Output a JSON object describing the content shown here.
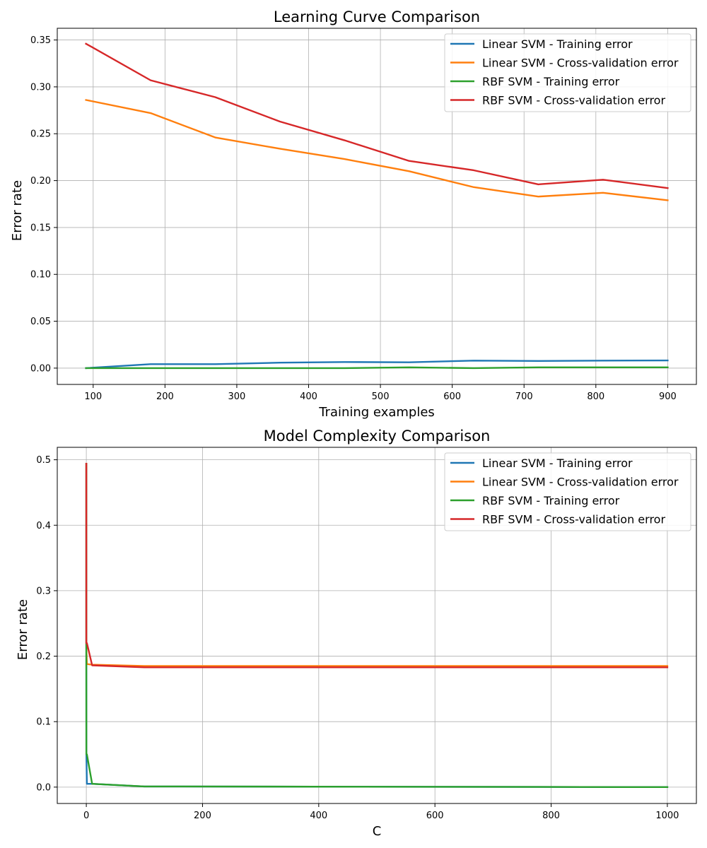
{
  "chart_data": [
    {
      "type": "line",
      "title": "Learning Curve Comparison",
      "xlabel": "Training examples",
      "ylabel": "Error rate",
      "xlim": [
        50,
        940
      ],
      "ylim": [
        -0.0174,
        0.3625
      ],
      "xticks": [
        100,
        200,
        300,
        400,
        500,
        600,
        700,
        800,
        900
      ],
      "xtick_labels": [
        "100",
        "200",
        "300",
        "400",
        "500",
        "600",
        "700",
        "800",
        "900"
      ],
      "yticks": [
        0.0,
        0.05,
        0.1,
        0.15,
        0.2,
        0.25,
        0.3,
        0.35
      ],
      "ytick_labels": [
        "0.00",
        "0.05",
        "0.10",
        "0.15",
        "0.20",
        "0.25",
        "0.30",
        "0.35"
      ],
      "grid": true,
      "legend": "top-right",
      "x": [
        90,
        180,
        270,
        360,
        450,
        540,
        630,
        720,
        810,
        900
      ],
      "series": [
        {
          "name": "Linear SVM - Training error",
          "color": "#1f77b4",
          "values": [
            0.0,
            0.0042,
            0.0042,
            0.0058,
            0.0065,
            0.0062,
            0.008,
            0.0076,
            0.008,
            0.0082
          ]
        },
        {
          "name": "Linear SVM - Cross-validation error",
          "color": "#ff7f0e",
          "values": [
            0.286,
            0.272,
            0.246,
            0.234,
            0.223,
            0.21,
            0.193,
            0.183,
            0.187,
            0.179
          ]
        },
        {
          "name": "RBF SVM - Training error",
          "color": "#2ca02c",
          "values": [
            0.0,
            0.0,
            0.0,
            0.0,
            0.0,
            0.0008,
            0.0,
            0.0008,
            0.0008,
            0.0008
          ]
        },
        {
          "name": "RBF SVM - Cross-validation error",
          "color": "#d62728",
          "values": [
            0.346,
            0.307,
            0.289,
            0.263,
            0.243,
            0.221,
            0.211,
            0.196,
            0.201,
            0.192
          ]
        }
      ]
    },
    {
      "type": "line",
      "title": "Model Complexity Comparison",
      "xlabel": "C",
      "ylabel": "Error rate",
      "xlim": [
        -50,
        1050
      ],
      "ylim": [
        -0.025,
        0.519
      ],
      "xticks": [
        0,
        200,
        400,
        600,
        800,
        1000
      ],
      "xtick_labels": [
        "0",
        "200",
        "400",
        "600",
        "800",
        "1000"
      ],
      "yticks": [
        0.0,
        0.1,
        0.2,
        0.3,
        0.4,
        0.5
      ],
      "ytick_labels": [
        "0.0",
        "0.1",
        "0.2",
        "0.3",
        "0.4",
        "0.5"
      ],
      "grid": true,
      "legend": "top-right",
      "x": [
        0.001,
        0.01,
        0.1,
        1,
        10,
        100,
        1000
      ],
      "series": [
        {
          "name": "Linear SVM - Training error",
          "color": "#1f77b4",
          "values": [
            0.494,
            0.22,
            0.05,
            0.005,
            0.005,
            0.001,
            0.0
          ]
        },
        {
          "name": "Linear SVM - Cross-validation error",
          "color": "#ff7f0e",
          "values": [
            0.494,
            0.22,
            0.212,
            0.188,
            0.187,
            0.185,
            0.185
          ]
        },
        {
          "name": "RBF SVM - Training error",
          "color": "#2ca02c",
          "values": [
            0.494,
            0.22,
            0.05,
            0.05,
            0.005,
            0.001,
            0.0
          ]
        },
        {
          "name": "RBF SVM - Cross-validation error",
          "color": "#d62728",
          "values": [
            0.494,
            0.22,
            0.22,
            0.22,
            0.186,
            0.183,
            0.183
          ]
        }
      ]
    }
  ]
}
